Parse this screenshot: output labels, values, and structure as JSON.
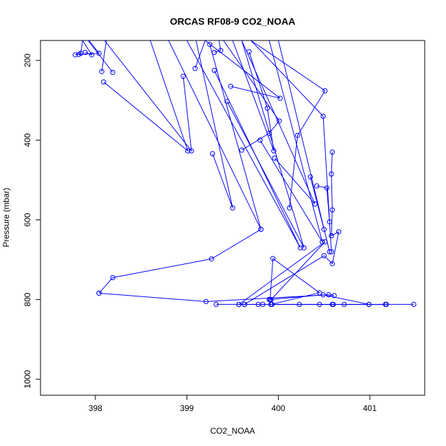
{
  "chart_data": {
    "type": "line",
    "title": "ORCAS RF08-9 CO2_NOAA",
    "xlabel": "CO2_NOAA",
    "ylabel": "Pressure (mbar)",
    "xlim": [
      397.4,
      401.6
    ],
    "ylim": [
      1040,
      150
    ],
    "y_reversed": true,
    "x_ticks": [
      398,
      399,
      400,
      401
    ],
    "y_ticks": [
      200,
      400,
      600,
      800,
      1000
    ],
    "series_color": "#0000ff",
    "marker": "open-circle",
    "grid": false,
    "legend": "none",
    "series": [
      {
        "points": [
          [
            397.82,
            185
          ],
          [
            398.04,
            182
          ],
          [
            397.93,
            150
          ]
        ]
      },
      {
        "points": [
          [
            397.78,
            186
          ],
          [
            397.84,
            182
          ],
          [
            397.86,
            150
          ]
        ]
      },
      {
        "points": [
          [
            397.89,
            180
          ],
          [
            397.96,
            186
          ],
          [
            397.86,
            150
          ]
        ]
      },
      {
        "points": [
          [
            398.07,
            228
          ],
          [
            398.12,
            150
          ]
        ]
      },
      {
        "points": [
          [
            398.19,
            230
          ],
          [
            397.92,
            150
          ]
        ]
      },
      {
        "points": [
          [
            398.09,
            254
          ],
          [
            399.01,
            427
          ],
          [
            398.6,
            150
          ]
        ]
      },
      {
        "points": [
          [
            398.96,
            240
          ],
          [
            399.05,
            427
          ],
          [
            398.1,
            150
          ]
        ]
      },
      {
        "points": [
          [
            399.09,
            220
          ],
          [
            399.2,
            150
          ]
        ]
      },
      {
        "points": [
          [
            399.28,
            434
          ],
          [
            399.5,
            570
          ],
          [
            399.1,
            150
          ]
        ]
      },
      {
        "points": [
          [
            399.25,
            160
          ],
          [
            399.81,
            624
          ],
          [
            398.8,
            150
          ]
        ]
      },
      {
        "points": [
          [
            399.3,
            180
          ],
          [
            399.37,
            175
          ],
          [
            399.35,
            150
          ]
        ]
      },
      {
        "points": [
          [
            399.3,
            225
          ],
          [
            400.24,
            670
          ],
          [
            399.0,
            150
          ]
        ]
      },
      {
        "points": [
          [
            399.44,
            303
          ],
          [
            400.28,
            670
          ],
          [
            399.6,
            150
          ]
        ]
      },
      {
        "points": [
          [
            399.48,
            265
          ],
          [
            400.02,
            295
          ],
          [
            399.2,
            150
          ]
        ]
      },
      {
        "points": [
          [
            399.68,
            178
          ],
          [
            399.88,
            320
          ],
          [
            399.95,
            427
          ],
          [
            399.5,
            150
          ]
        ]
      },
      {
        "points": [
          [
            399.6,
            425
          ],
          [
            399.9,
            383
          ],
          [
            400.01,
            352
          ],
          [
            399.4,
            150
          ]
        ]
      },
      {
        "points": [
          [
            399.8,
            400
          ],
          [
            400.48,
            655
          ],
          [
            399.9,
            150
          ]
        ]
      },
      {
        "points": [
          [
            399.96,
            445
          ],
          [
            400.4,
            560
          ],
          [
            399.6,
            150
          ]
        ]
      },
      {
        "points": [
          [
            400.12,
            570
          ],
          [
            400.21,
            388
          ],
          [
            400.51,
            276
          ],
          [
            399.7,
            150
          ]
        ]
      },
      {
        "points": [
          [
            400.35,
            492
          ],
          [
            400.5,
            624
          ],
          [
            400.56,
            680
          ],
          [
            400.0,
            150
          ]
        ]
      },
      {
        "points": [
          [
            400.42,
            515
          ],
          [
            400.53,
            520
          ],
          [
            400.56,
            605
          ],
          [
            400.58,
            680
          ],
          [
            400.49,
            340
          ],
          [
            399.7,
            150
          ]
        ]
      },
      {
        "points": [
          [
            400.59,
            430
          ],
          [
            400.58,
            485
          ],
          [
            400.59,
            575
          ],
          [
            400.58,
            640
          ],
          [
            400.66,
            630
          ],
          [
            400.59,
            710
          ],
          [
            400.5,
            690
          ],
          [
            399.63,
            812
          ]
        ]
      },
      {
        "points": [
          [
            398.04,
            784
          ],
          [
            398.19,
            745
          ],
          [
            399.27,
            698
          ],
          [
            399.81,
            624
          ]
        ]
      },
      {
        "points": [
          [
            398.04,
            784
          ],
          [
            399.21,
            805
          ],
          [
            400.55,
            788
          ],
          [
            400.61,
            790
          ]
        ]
      },
      {
        "points": [
          [
            399.32,
            812
          ],
          [
            400.6,
            812
          ],
          [
            401.48,
            812
          ]
        ]
      },
      {
        "points": [
          [
            399.57,
            812
          ],
          [
            399.63,
            812
          ],
          [
            399.78,
            812
          ],
          [
            399.83,
            812
          ],
          [
            399.92,
            812
          ],
          [
            400.23,
            812
          ],
          [
            400.45,
            812
          ],
          [
            400.59,
            812
          ],
          [
            400.72,
            812
          ],
          [
            400.99,
            812
          ],
          [
            401.17,
            812
          ]
        ]
      },
      {
        "points": [
          [
            399.91,
            800
          ],
          [
            399.94,
            697
          ],
          [
            400.45,
            783
          ],
          [
            399.92,
            812
          ]
        ]
      },
      {
        "points": [
          [
            399.92,
            800
          ],
          [
            400.51,
            655
          ],
          [
            399.57,
            812
          ]
        ]
      },
      {
        "points": [
          [
            399.9,
            800
          ],
          [
            400.49,
            788
          ],
          [
            400.99,
            812
          ]
        ]
      },
      {
        "points": [
          [
            399.93,
            812
          ],
          [
            401.18,
            812
          ]
        ]
      }
    ]
  }
}
